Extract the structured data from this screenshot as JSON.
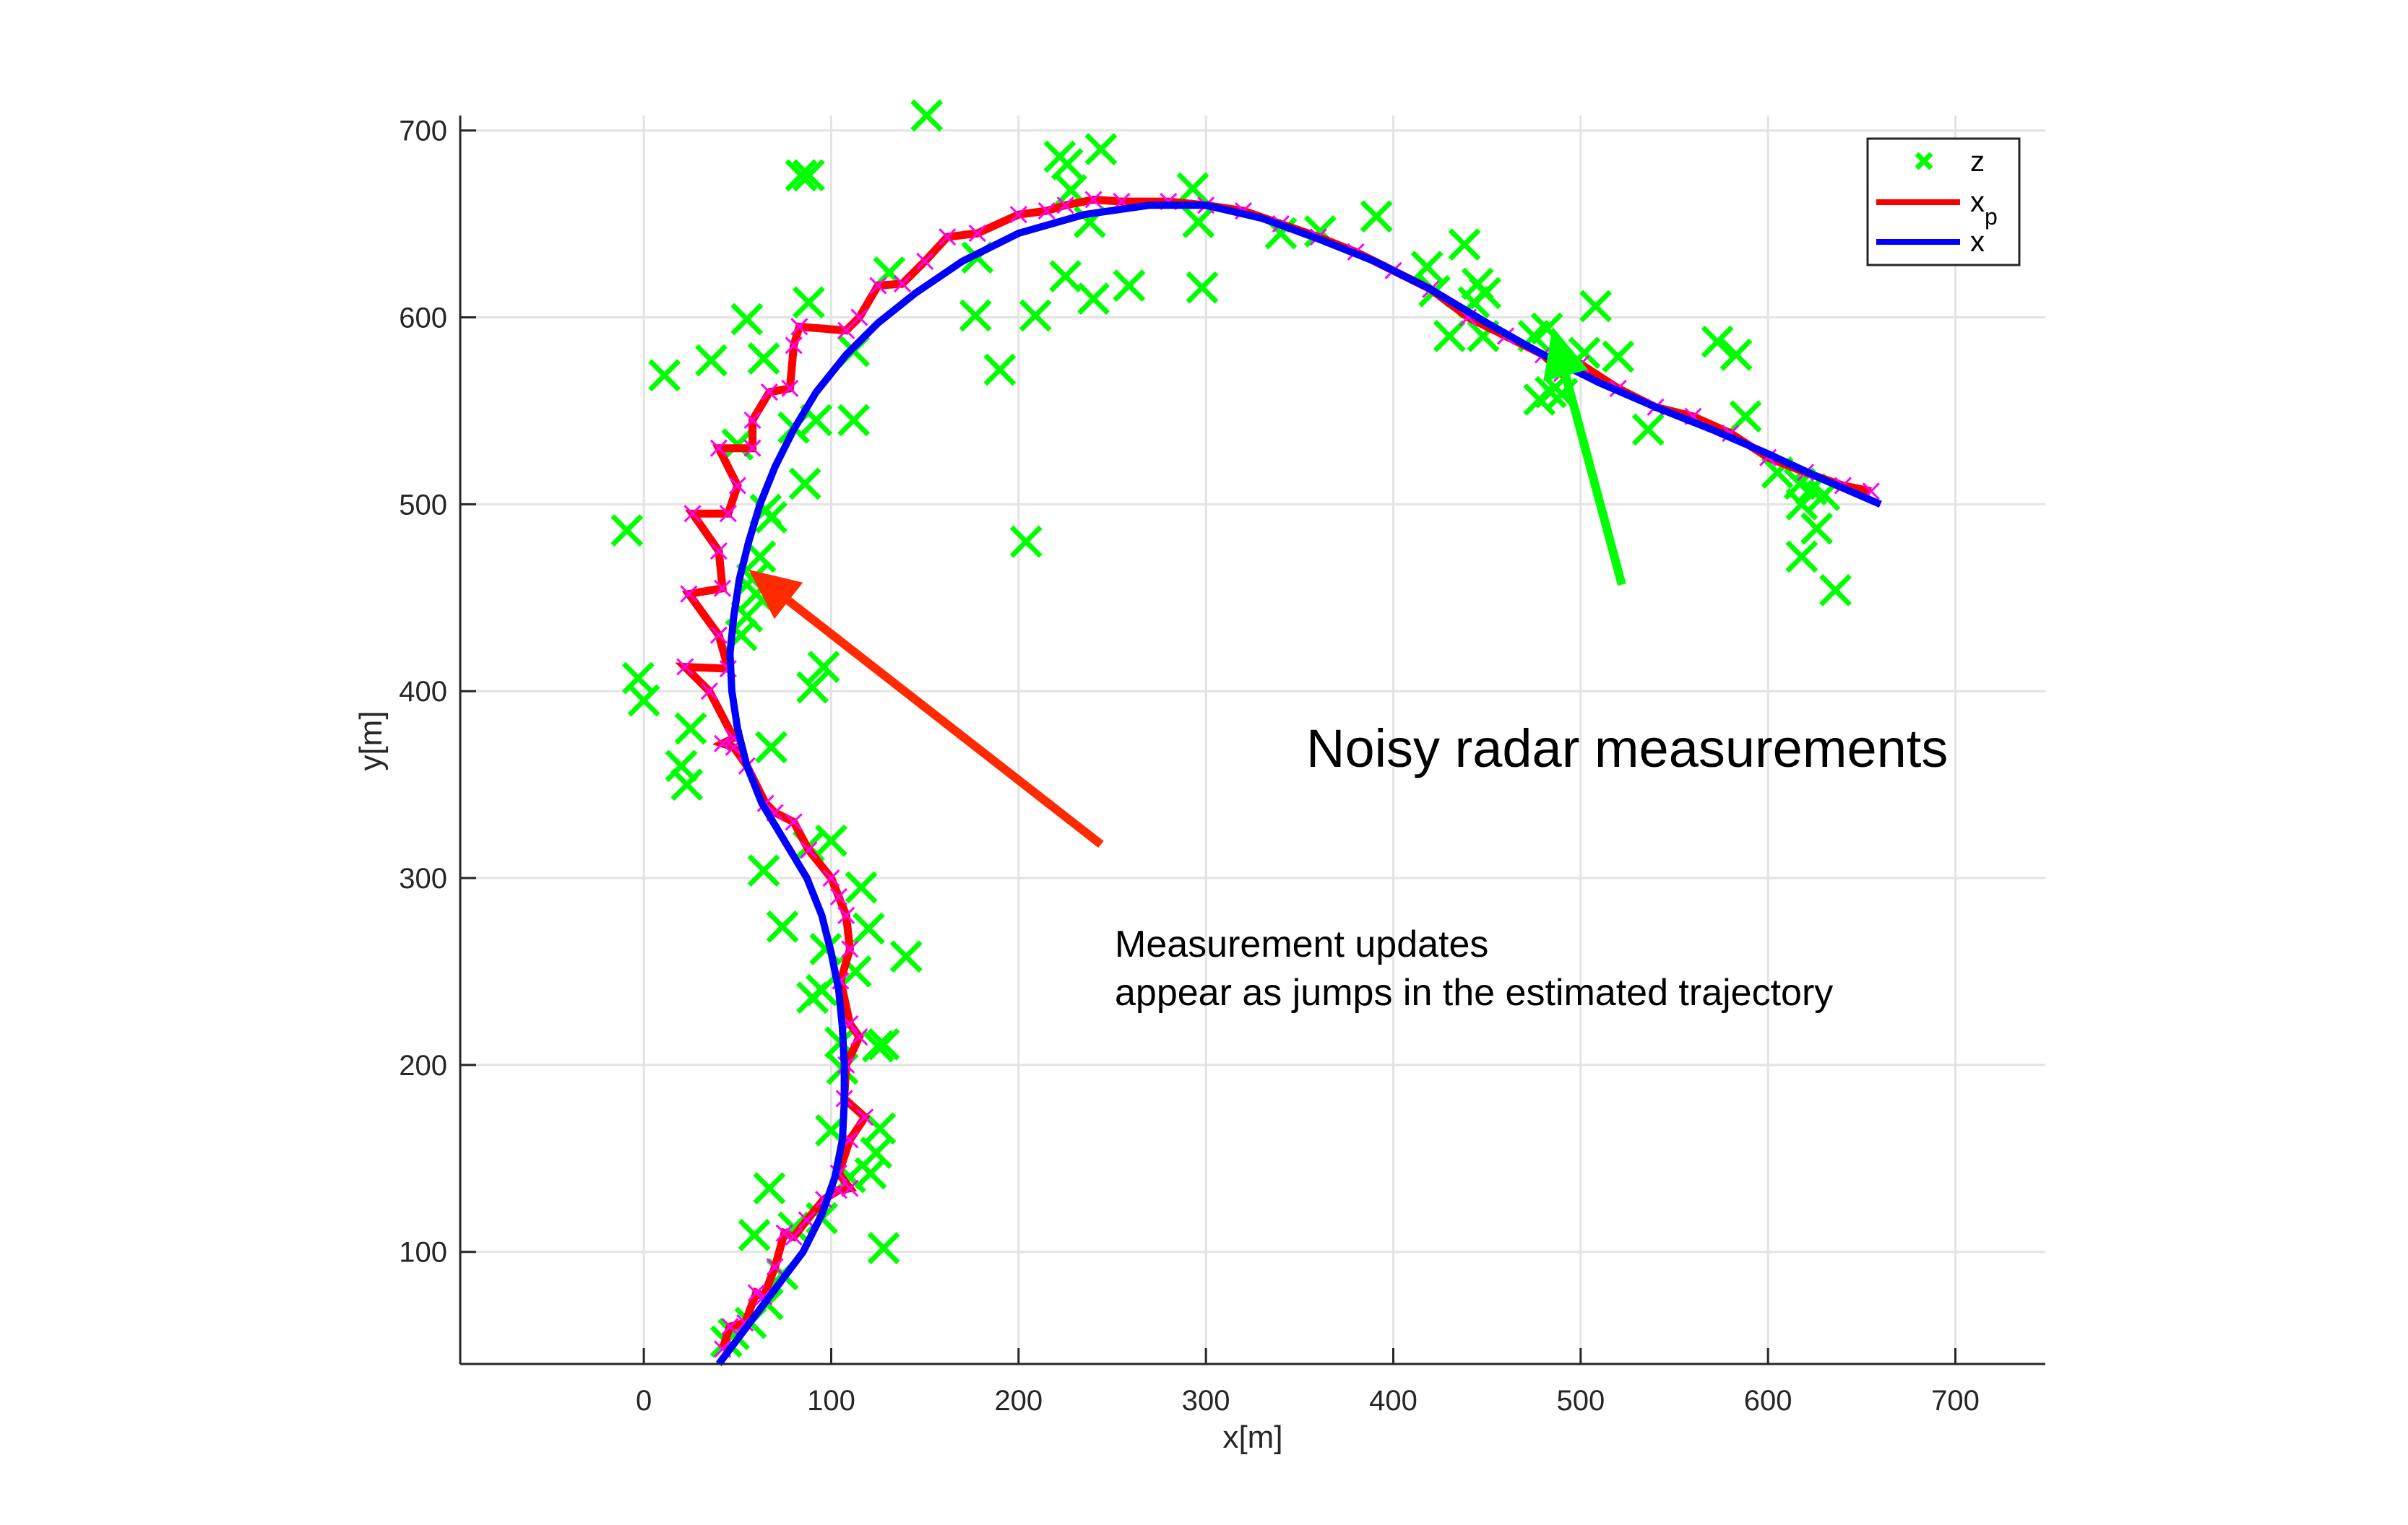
{
  "chart_data": {
    "type": "line",
    "title": "",
    "xlabel": "x[m]",
    "ylabel": "y[m]",
    "xlim": [
      -98,
      748
    ],
    "ylim": [
      40,
      708
    ],
    "xticks": [
      0,
      100,
      200,
      300,
      400,
      500,
      600,
      700
    ],
    "yticks": [
      100,
      200,
      300,
      400,
      500,
      600,
      700
    ],
    "grid": true,
    "legend_position": "top-right",
    "legend": [
      {
        "label": "z",
        "sub": "",
        "kind": "marker",
        "color": "#00ff00"
      },
      {
        "label": "x",
        "sub": "p",
        "kind": "line",
        "color": "#ff0000"
      },
      {
        "label": "x",
        "sub": "",
        "kind": "line",
        "color": "#0000ff"
      }
    ],
    "series": [
      {
        "name": "z",
        "kind": "scatter",
        "marker": "x",
        "color": "#00ff00",
        "points": [
          [
            151,
            708
          ],
          [
            222,
            686
          ],
          [
            226,
            682
          ],
          [
            244,
            690
          ],
          [
            228,
            668
          ],
          [
            84,
            676
          ],
          [
            88,
            676
          ],
          [
            293,
            669
          ],
          [
            391,
            654
          ],
          [
            238,
            651
          ],
          [
            296,
            651
          ],
          [
            340,
            645
          ],
          [
            361,
            646
          ],
          [
            438,
            639
          ],
          [
            225,
            622
          ],
          [
            178,
            632
          ],
          [
            131,
            624
          ],
          [
            259,
            617
          ],
          [
            298,
            616
          ],
          [
            240,
            610
          ],
          [
            418,
            627
          ],
          [
            422,
            614
          ],
          [
            445,
            618
          ],
          [
            449,
            613
          ],
          [
            443,
            608
          ],
          [
            430,
            590
          ],
          [
            448,
            590
          ],
          [
            508,
            606
          ],
          [
            88,
            608
          ],
          [
            55,
            599
          ],
          [
            177,
            601
          ],
          [
            209,
            601
          ],
          [
            36,
            577
          ],
          [
            64,
            578
          ],
          [
            11,
            569
          ],
          [
            190,
            572
          ],
          [
            475,
            590
          ],
          [
            482,
            594
          ],
          [
            502,
            581
          ],
          [
            520,
            579
          ],
          [
            573,
            587
          ],
          [
            583,
            580
          ],
          [
            478,
            556
          ],
          [
            484,
            560
          ],
          [
            490,
            559
          ],
          [
            536,
            540
          ],
          [
            588,
            547
          ],
          [
            112,
            582
          ],
          [
            112,
            545
          ],
          [
            92,
            545
          ],
          [
            80,
            541
          ],
          [
            50,
            532
          ],
          [
            86,
            511
          ],
          [
            65,
            497
          ],
          [
            68,
            493
          ],
          [
            -9,
            486
          ],
          [
            204,
            480
          ],
          [
            62,
            472
          ],
          [
            58,
            460
          ],
          [
            60,
            452
          ],
          [
            55,
            440
          ],
          [
            52,
            430
          ],
          [
            96,
            413
          ],
          [
            90,
            402
          ],
          [
            -3,
            407
          ],
          [
            0,
            395
          ],
          [
            25,
            380
          ],
          [
            20,
            360
          ],
          [
            23,
            350
          ],
          [
            68,
            370
          ],
          [
            100,
            320
          ],
          [
            88,
            317
          ],
          [
            64,
            304
          ],
          [
            116,
            295
          ],
          [
            120,
            273
          ],
          [
            74,
            274
          ],
          [
            140,
            258
          ],
          [
            97,
            262
          ],
          [
            113,
            250
          ],
          [
            95,
            240
          ],
          [
            90,
            236
          ],
          [
            105,
            212
          ],
          [
            125,
            210
          ],
          [
            128,
            211
          ],
          [
            106,
            198
          ],
          [
            126,
            166
          ],
          [
            124,
            153
          ],
          [
            100,
            165
          ],
          [
            110,
            140
          ],
          [
            121,
            142
          ],
          [
            67,
            134
          ],
          [
            59,
            109
          ],
          [
            128,
            102
          ],
          [
            80,
            113
          ],
          [
            95,
            118
          ],
          [
            66,
            72
          ],
          [
            57,
            62
          ],
          [
            44,
            52
          ],
          [
            48,
            56
          ],
          [
            74,
            88
          ],
          [
            618,
            500
          ],
          [
            623,
            508
          ],
          [
            630,
            505
          ],
          [
            626,
            487
          ],
          [
            618,
            472
          ],
          [
            636,
            454
          ],
          [
            617,
            511
          ],
          [
            605,
            517
          ]
        ]
      },
      {
        "name": "x_p",
        "kind": "line",
        "color": "#ff0000",
        "points": [
          [
            42,
            48
          ],
          [
            46,
            60
          ],
          [
            54,
            62
          ],
          [
            60,
            78
          ],
          [
            64,
            76
          ],
          [
            70,
            92
          ],
          [
            75,
            110
          ],
          [
            80,
            108
          ],
          [
            87,
            117
          ],
          [
            96,
            128
          ],
          [
            104,
            133
          ],
          [
            110,
            134
          ],
          [
            104,
            142
          ],
          [
            110,
            160
          ],
          [
            118,
            172
          ],
          [
            107,
            182
          ],
          [
            108,
            200
          ],
          [
            115,
            215
          ],
          [
            110,
            222
          ],
          [
            105,
            245
          ],
          [
            110,
            262
          ],
          [
            108,
            280
          ],
          [
            104,
            290
          ],
          [
            100,
            300
          ],
          [
            88,
            315
          ],
          [
            80,
            330
          ],
          [
            70,
            335
          ],
          [
            65,
            340
          ],
          [
            55,
            360
          ],
          [
            48,
            370
          ],
          [
            42,
            372
          ],
          [
            48,
            375
          ],
          [
            35,
            400
          ],
          [
            22,
            413
          ],
          [
            45,
            412
          ],
          [
            40,
            430
          ],
          [
            24,
            452
          ],
          [
            42,
            455
          ],
          [
            40,
            475
          ],
          [
            26,
            495
          ],
          [
            45,
            495
          ],
          [
            50,
            510
          ],
          [
            40,
            530
          ],
          [
            58,
            530
          ],
          [
            58,
            545
          ],
          [
            67,
            560
          ],
          [
            78,
            562
          ],
          [
            80,
            585
          ],
          [
            83,
            595
          ],
          [
            108,
            593
          ],
          [
            115,
            600
          ],
          [
            125,
            617
          ],
          [
            138,
            618
          ],
          [
            150,
            630
          ],
          [
            162,
            643
          ],
          [
            178,
            645
          ],
          [
            200,
            655
          ],
          [
            215,
            657
          ],
          [
            225,
            660
          ],
          [
            240,
            663
          ],
          [
            255,
            662
          ],
          [
            280,
            662
          ],
          [
            300,
            660
          ],
          [
            320,
            657
          ],
          [
            340,
            650
          ],
          [
            360,
            643
          ],
          [
            380,
            635
          ],
          [
            400,
            625
          ],
          [
            420,
            615
          ],
          [
            440,
            600
          ],
          [
            460,
            590
          ],
          [
            480,
            580
          ],
          [
            490,
            570
          ],
          [
            500,
            575
          ],
          [
            520,
            562
          ],
          [
            540,
            552
          ],
          [
            560,
            547
          ],
          [
            580,
            538
          ],
          [
            600,
            525
          ],
          [
            620,
            517
          ],
          [
            640,
            510
          ],
          [
            655,
            507
          ]
        ]
      },
      {
        "name": "x",
        "kind": "line",
        "color": "#0000ff",
        "points": [
          [
            40,
            40
          ],
          [
            55,
            60
          ],
          [
            70,
            80
          ],
          [
            85,
            100
          ],
          [
            95,
            120
          ],
          [
            102,
            140
          ],
          [
            106,
            160
          ],
          [
            107,
            180
          ],
          [
            107,
            200
          ],
          [
            106,
            220
          ],
          [
            104,
            240
          ],
          [
            100,
            260
          ],
          [
            95,
            280
          ],
          [
            87,
            300
          ],
          [
            75,
            320
          ],
          [
            63,
            340
          ],
          [
            55,
            360
          ],
          [
            50,
            380
          ],
          [
            47,
            400
          ],
          [
            46,
            420
          ],
          [
            48,
            440
          ],
          [
            51,
            460
          ],
          [
            56,
            480
          ],
          [
            62,
            500
          ],
          [
            70,
            520
          ],
          [
            80,
            540
          ],
          [
            92,
            560
          ],
          [
            108,
            580
          ],
          [
            125,
            597
          ],
          [
            145,
            613
          ],
          [
            170,
            630
          ],
          [
            200,
            645
          ],
          [
            235,
            655
          ],
          [
            270,
            660
          ],
          [
            300,
            660
          ],
          [
            330,
            653
          ],
          [
            360,
            642
          ],
          [
            390,
            630
          ],
          [
            420,
            615
          ],
          [
            450,
            597
          ],
          [
            480,
            580
          ],
          [
            510,
            565
          ],
          [
            540,
            552
          ],
          [
            570,
            540
          ],
          [
            600,
            527
          ],
          [
            630,
            513
          ],
          [
            660,
            500
          ]
        ]
      }
    ],
    "annotations": [
      {
        "text": [
          "Noisy radar measurements"
        ],
        "arrow_color": "#00ff00",
        "arrow_from": [
          522,
          457
        ],
        "arrow_to": [
          485,
          595
        ]
      },
      {
        "text": [
          "Measurement updates",
          "appear as jumps in the estimated trajectory"
        ],
        "arrow_color": "#ff2a00",
        "arrow_from": [
          244,
          318
        ],
        "arrow_to": [
          56,
          465
        ]
      }
    ]
  }
}
